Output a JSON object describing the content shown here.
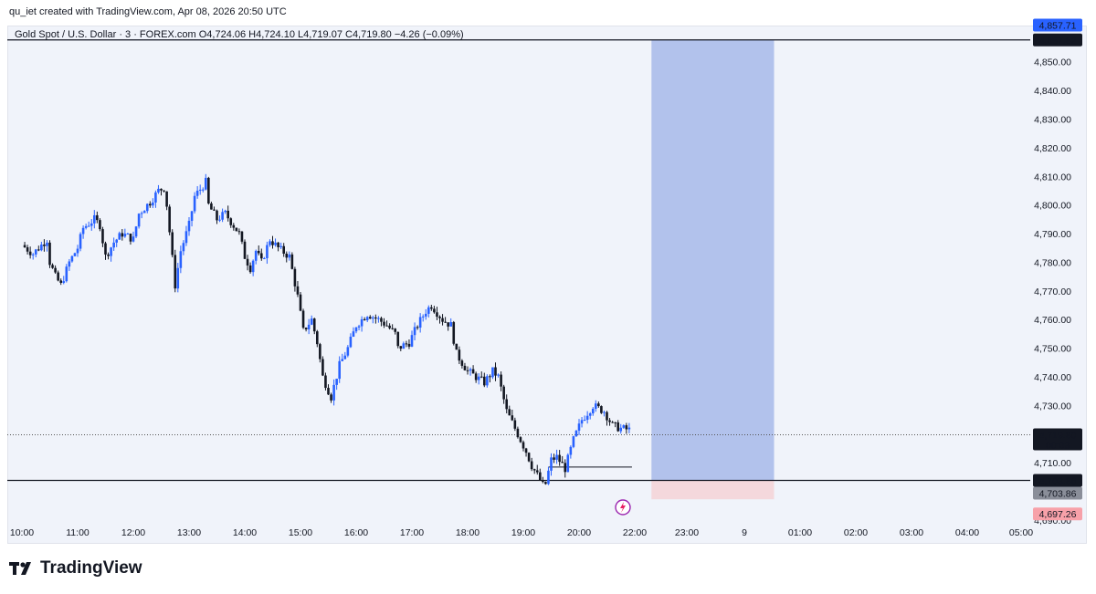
{
  "header": {
    "created_by": "qu_iet created with TradingView.com, Apr 08, 2026 20:50 UTC"
  },
  "legend": {
    "symbol": "Gold Spot / U.S. Dollar · 3 · FOREX.com",
    "open": "O4,724.06",
    "high": "H4,724.10",
    "low": "L4,719.07",
    "close": "C4,719.80",
    "change": "−4.26 (−0.09%)"
  },
  "brand": {
    "name": "TradingView",
    "logo_icon": "tradingview-logo-icon"
  },
  "colors": {
    "up": "#2962ff",
    "down": "#131722",
    "target_zone": "#b2c2ec",
    "stop_zone": "#f4d8dc",
    "stop_label": "#f7a1a9",
    "level_label": "#131722"
  },
  "chart_data": {
    "type": "candlestick",
    "ylim": [
      4690,
      4862
    ],
    "yticks": [
      4690,
      4700,
      4710,
      4720,
      4730,
      4740,
      4750,
      4760,
      4770,
      4780,
      4790,
      4800,
      4810,
      4820,
      4830,
      4840,
      4850
    ],
    "ytick_labels": [
      "4,690.00",
      "4,700.00",
      "4,710.00",
      "4,720.00",
      "4,730.00",
      "4,740.00",
      "4,750.00",
      "4,760.00",
      "4,770.00",
      "4,780.00",
      "4,790.00",
      "4,800.00",
      "4,810.00",
      "4,820.00",
      "4,830.00",
      "4,840.00",
      "4,850.00"
    ],
    "xticks": [
      "10:00",
      "11:00",
      "12:00",
      "13:00",
      "14:00",
      "15:00",
      "16:00",
      "17:00",
      "18:00",
      "19:00",
      "20:00",
      "22:00",
      "23:00",
      "9",
      "01:00",
      "02:00",
      "03:00",
      "04:00",
      "05:00"
    ],
    "price_path": [
      [
        10.0,
        4786
      ],
      [
        10.2,
        4783
      ],
      [
        10.45,
        4788
      ],
      [
        10.5,
        4780
      ],
      [
        10.6,
        4775
      ],
      [
        10.7,
        4772
      ],
      [
        10.85,
        4780
      ],
      [
        11.0,
        4785
      ],
      [
        11.1,
        4792
      ],
      [
        11.3,
        4795
      ],
      [
        11.4,
        4793
      ],
      [
        11.5,
        4782
      ],
      [
        11.65,
        4787
      ],
      [
        11.8,
        4790
      ],
      [
        12.0,
        4788
      ],
      [
        12.1,
        4797
      ],
      [
        12.3,
        4801
      ],
      [
        12.45,
        4805
      ],
      [
        12.55,
        4806
      ],
      [
        12.6,
        4800
      ],
      [
        12.75,
        4772
      ],
      [
        12.85,
        4784
      ],
      [
        13.0,
        4793
      ],
      [
        13.1,
        4803
      ],
      [
        13.3,
        4808
      ],
      [
        13.35,
        4800
      ],
      [
        13.5,
        4795
      ],
      [
        13.65,
        4797
      ],
      [
        13.9,
        4790
      ],
      [
        14.0,
        4782
      ],
      [
        14.1,
        4778
      ],
      [
        14.2,
        4784
      ],
      [
        14.3,
        4780
      ],
      [
        14.45,
        4788
      ],
      [
        14.6,
        4785
      ],
      [
        14.8,
        4782
      ],
      [
        14.95,
        4768
      ],
      [
        15.05,
        4756
      ],
      [
        15.2,
        4760
      ],
      [
        15.3,
        4752
      ],
      [
        15.4,
        4740
      ],
      [
        15.55,
        4733
      ],
      [
        15.7,
        4744
      ],
      [
        15.85,
        4750
      ],
      [
        16.0,
        4758
      ],
      [
        16.2,
        4762
      ],
      [
        16.4,
        4760
      ],
      [
        16.55,
        4758
      ],
      [
        16.7,
        4755
      ],
      [
        16.75,
        4750
      ],
      [
        16.95,
        4752
      ],
      [
        17.1,
        4758
      ],
      [
        17.25,
        4763
      ],
      [
        17.35,
        4765
      ],
      [
        17.55,
        4760
      ],
      [
        17.7,
        4758
      ],
      [
        17.8,
        4748
      ],
      [
        18.0,
        4742
      ],
      [
        18.15,
        4740
      ],
      [
        18.3,
        4738
      ],
      [
        18.45,
        4742
      ],
      [
        18.55,
        4740
      ],
      [
        18.7,
        4728
      ],
      [
        18.95,
        4718
      ],
      [
        19.05,
        4714
      ],
      [
        19.15,
        4709
      ],
      [
        19.3,
        4704
      ],
      [
        19.38,
        4701
      ],
      [
        19.5,
        4711
      ],
      [
        19.6,
        4712
      ],
      [
        19.75,
        4708
      ],
      [
        19.9,
        4718
      ],
      [
        20.05,
        4725
      ],
      [
        20.25,
        4730
      ],
      [
        20.45,
        4728
      ],
      [
        20.6,
        4723
      ],
      [
        20.75,
        4722
      ],
      [
        20.9,
        4721.5
      ],
      [
        20.93,
        4719.8
      ]
    ],
    "levels": [
      {
        "name": "target",
        "value": 4857.62,
        "label": "4,857.62"
      },
      {
        "name": "entry",
        "value": 4703.86,
        "label": "4,703.86"
      },
      {
        "name": "entry-alt",
        "value": 4703.86,
        "label": "4,703.86"
      },
      {
        "name": "stop",
        "value": 4697.26,
        "label": "4,697.26"
      },
      {
        "name": "high-marker",
        "value": 4857.71,
        "label": "4,857.71"
      },
      {
        "name": "last",
        "value": 4719.8,
        "label": "4,719.80",
        "countdown": "00:03"
      }
    ],
    "horizontal_segment": {
      "from": 19.45,
      "to": 20.95,
      "value": 4708.5
    },
    "position_tool": {
      "from": 21.3,
      "to": 23.5,
      "top": 4857.62,
      "entry": 4703.86,
      "bottom": 4697.26
    }
  }
}
